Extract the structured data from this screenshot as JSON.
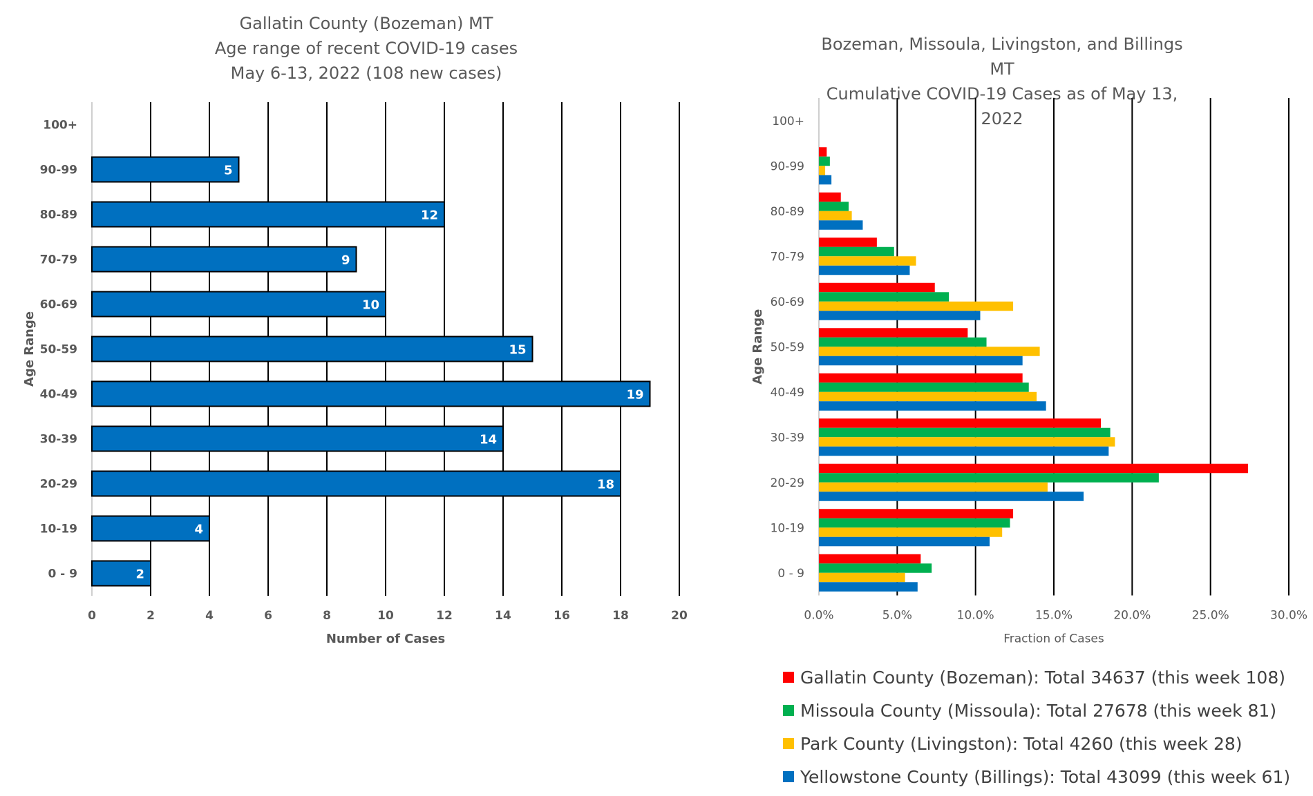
{
  "chart_data": [
    {
      "type": "bar",
      "orientation": "horizontal",
      "title": "Gallatin County (Bozeman) MT",
      "subtitle_lines": [
        "Age range of recent COVID-19 cases",
        "May 6-13, 2022 (108 new cases)"
      ],
      "xlabel": "Number of Cases",
      "ylabel": "Age Range",
      "categories": [
        "0 - 9",
        "10-19",
        "20-29",
        "30-39",
        "40-49",
        "50-59",
        "60-69",
        "70-79",
        "80-89",
        "90-99",
        "100+"
      ],
      "values": [
        2,
        4,
        18,
        14,
        19,
        15,
        10,
        9,
        12,
        5,
        null
      ],
      "data_labels": [
        "2",
        "4",
        "18",
        "14",
        "19",
        "15",
        "10",
        "9",
        "12",
        "5",
        ""
      ],
      "xlim": [
        0,
        20
      ],
      "xticks": [
        "0",
        "2",
        "4",
        "6",
        "8",
        "10",
        "12",
        "14",
        "16",
        "18",
        "20"
      ],
      "grid": "vertical",
      "bar_color": "#0070C0"
    },
    {
      "type": "bar",
      "orientation": "horizontal",
      "title": "Bozeman, Missoula, Livingston, and Billings MT",
      "subtitle_lines": [
        "Cumulative COVID-19 Cases as of May 13, 2022"
      ],
      "xlabel": "Fraction of Cases",
      "ylabel": "Age Range",
      "categories": [
        "0 - 9",
        "10-19",
        "20-29",
        "30-39",
        "40-49",
        "50-59",
        "60-69",
        "70-79",
        "80-89",
        "90-99",
        "100+"
      ],
      "xlim": [
        0,
        30
      ],
      "xticks": [
        "0.0%",
        "5.0%",
        "10.0%",
        "15.0%",
        "20.0%",
        "25.0%",
        "30.0%"
      ],
      "grid": "vertical",
      "legend_position": "bottom",
      "series": [
        {
          "name": "Gallatin County (Bozeman): Total 34637 (this week 108)",
          "color": "#FF0000",
          "values": [
            6.5,
            12.4,
            27.4,
            18.0,
            13.0,
            9.5,
            7.4,
            3.7,
            1.4,
            0.5,
            0.0
          ]
        },
        {
          "name": "Missoula County (Missoula): Total 27678 (this week 81)",
          "color": "#00B050",
          "values": [
            7.2,
            12.2,
            21.7,
            18.6,
            13.4,
            10.7,
            8.3,
            4.8,
            1.9,
            0.7,
            0.0
          ]
        },
        {
          "name": "Park County (Livingston): Total 4260 (this week 28)",
          "color": "#FFC000",
          "values": [
            5.5,
            11.7,
            14.6,
            18.9,
            13.9,
            14.1,
            12.4,
            6.2,
            2.1,
            0.4,
            0.0
          ]
        },
        {
          "name": "Yellowstone County (Billings): Total 43099 (this week 61)",
          "color": "#0070C0",
          "values": [
            6.3,
            10.9,
            16.9,
            18.5,
            14.5,
            13.0,
            10.3,
            5.8,
            2.8,
            0.8,
            0.0
          ]
        }
      ]
    }
  ]
}
